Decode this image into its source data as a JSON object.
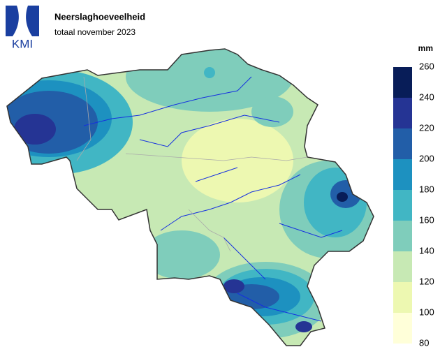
{
  "header": {
    "logo": "KMI",
    "title": "Neerslaghoeveelheid",
    "subtitle": "totaal november 2023"
  },
  "legend": {
    "unit": "mm",
    "ticks": [
      80,
      100,
      120,
      140,
      160,
      180,
      200,
      220,
      240,
      260
    ],
    "colors": [
      "#ffffd9",
      "#edf8b1",
      "#c7e9b4",
      "#7fcdbb",
      "#41b6c4",
      "#1d91c0",
      "#225ea8",
      "#253494",
      "#081d58"
    ]
  }
}
